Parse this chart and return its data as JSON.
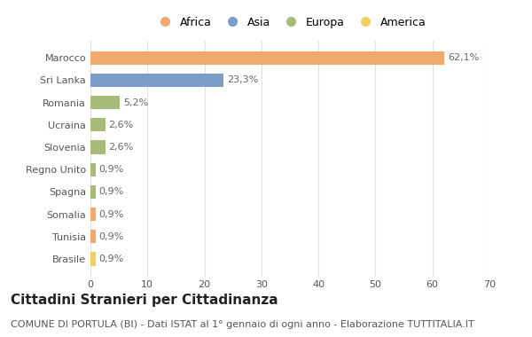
{
  "title": "Cittadini Stranieri per Cittadinanza",
  "subtitle": "COMUNE DI PORTULA (BI) - Dati ISTAT al 1° gennaio di ogni anno - Elaborazione TUTTITALIA.IT",
  "categories": [
    "Marocco",
    "Sri Lanka",
    "Romania",
    "Ucraina",
    "Slovenia",
    "Regno Unito",
    "Spagna",
    "Somalia",
    "Tunisia",
    "Brasile"
  ],
  "values": [
    62.1,
    23.3,
    5.2,
    2.6,
    2.6,
    0.9,
    0.9,
    0.9,
    0.9,
    0.9
  ],
  "labels": [
    "62,1%",
    "23,3%",
    "5,2%",
    "2,6%",
    "2,6%",
    "0,9%",
    "0,9%",
    "0,9%",
    "0,9%",
    "0,9%"
  ],
  "colors": [
    "#F2A96E",
    "#7B9DC8",
    "#A8BB7B",
    "#A8BB7B",
    "#A8BB7B",
    "#A8BB7B",
    "#A8BB7B",
    "#F2A96E",
    "#F2A96E",
    "#F0D060"
  ],
  "legend": [
    {
      "label": "Africa",
      "color": "#F2A96E"
    },
    {
      "label": "Asia",
      "color": "#7B9DC8"
    },
    {
      "label": "Europa",
      "color": "#A8BB7B"
    },
    {
      "label": "America",
      "color": "#F0D060"
    }
  ],
  "xlim": [
    0,
    70
  ],
  "xticks": [
    0,
    10,
    20,
    30,
    40,
    50,
    60,
    70
  ],
  "background_color": "#ffffff",
  "grid_color": "#e0e0e0",
  "bar_height": 0.6,
  "title_fontsize": 11,
  "subtitle_fontsize": 8,
  "label_fontsize": 8,
  "tick_fontsize": 8,
  "legend_fontsize": 9
}
